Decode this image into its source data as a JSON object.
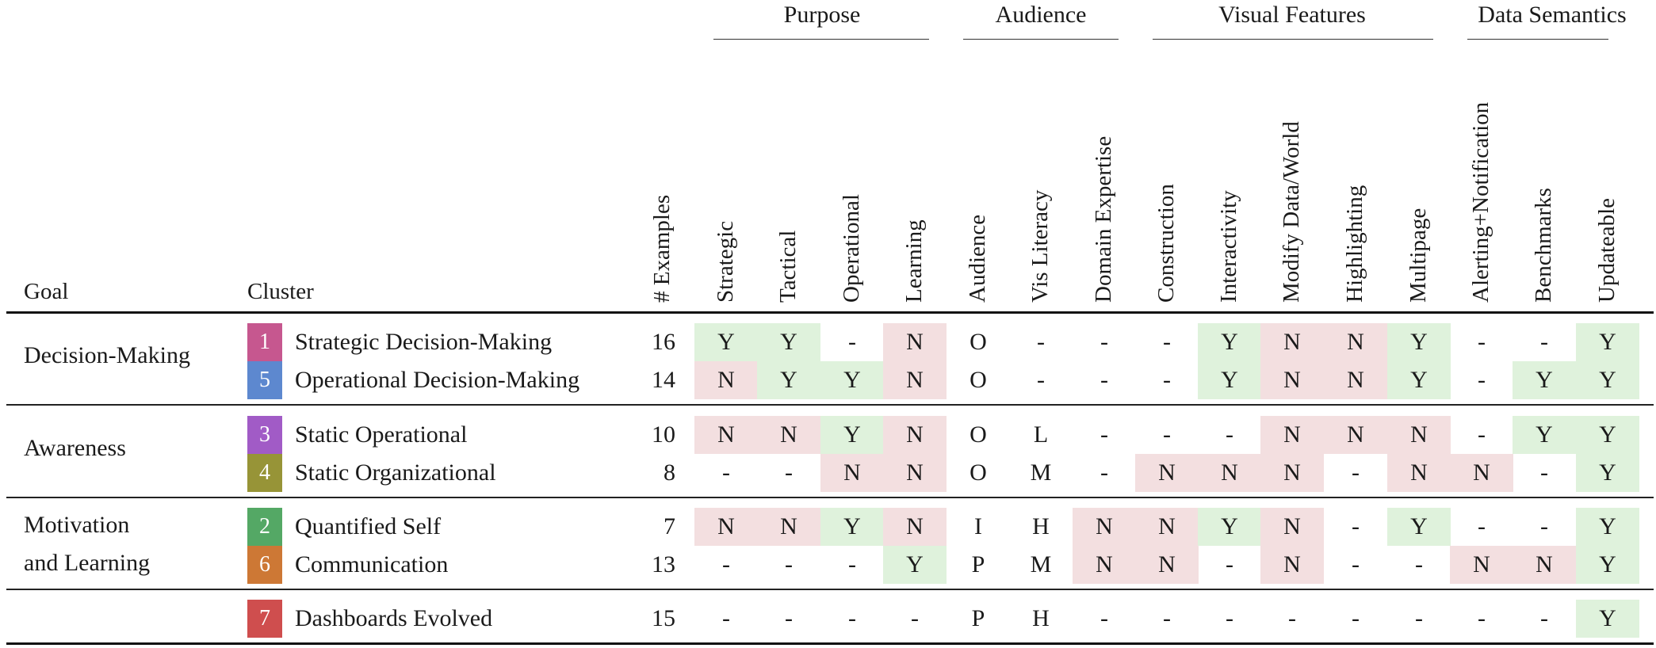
{
  "header": {
    "goal": "Goal",
    "cluster": "Cluster",
    "groups": [
      {
        "label": "Purpose"
      },
      {
        "label": "Audience"
      },
      {
        "label": "Visual Features"
      },
      {
        "label": "Data Semantics"
      }
    ],
    "columns": [
      "# Examples",
      "Strategic",
      "Tactical",
      "Operational",
      "Learning",
      "Audience",
      "Vis Literacy",
      "Domain Expertise",
      "Construction",
      "Interactivity",
      "Modify Data/World",
      "Highlighting",
      "Multipage",
      "Alerting+Notification",
      "Benchmarks",
      "Updateable"
    ]
  },
  "goals": [
    {
      "lines": [
        "Decision-Making"
      ]
    },
    {
      "lines": [
        "Awareness"
      ]
    },
    {
      "lines": [
        "Motivation",
        "and Learning"
      ]
    },
    {
      "lines": [
        ""
      ]
    }
  ],
  "colors": {
    "yes_bg": "#dff2dc",
    "no_bg": "#f3dfe0"
  },
  "rows": [
    {
      "num": "1",
      "color": "#c6578f",
      "name": "Strategic Decision-Making",
      "count": "16",
      "values": [
        "Y",
        "Y",
        "-",
        "N",
        "O",
        "-",
        "-",
        "-",
        "Y",
        "N",
        "N",
        "Y",
        "-",
        "-",
        "Y"
      ]
    },
    {
      "num": "5",
      "color": "#5d88cf",
      "name": "Operational Decision-Making",
      "count": "14",
      "values": [
        "N",
        "Y",
        "Y",
        "N",
        "O",
        "-",
        "-",
        "-",
        "Y",
        "N",
        "N",
        "Y",
        "-",
        "Y",
        "Y"
      ]
    },
    {
      "num": "3",
      "color": "#a15bc6",
      "name": "Static Operational",
      "count": "10",
      "values": [
        "N",
        "N",
        "Y",
        "N",
        "O",
        "L",
        "-",
        "-",
        "-",
        "N",
        "N",
        "N",
        "-",
        "Y",
        "Y"
      ]
    },
    {
      "num": "4",
      "color": "#979437",
      "name": "Static Organizational",
      "count": "8",
      "values": [
        "-",
        "-",
        "N",
        "N",
        "O",
        "M",
        "-",
        "N",
        "N",
        "N",
        "-",
        "N",
        "N",
        "-",
        "Y"
      ]
    },
    {
      "num": "2",
      "color": "#54a865",
      "name": "Quantified Self",
      "count": "7",
      "values": [
        "N",
        "N",
        "Y",
        "N",
        "I",
        "H",
        "N",
        "N",
        "Y",
        "N",
        "-",
        "Y",
        "-",
        "-",
        "Y"
      ]
    },
    {
      "num": "6",
      "color": "#cd7835",
      "name": "Communication",
      "count": "13",
      "values": [
        "-",
        "-",
        "-",
        "Y",
        "P",
        "M",
        "N",
        "N",
        "-",
        "N",
        "-",
        "-",
        "N",
        "N",
        "Y"
      ]
    },
    {
      "num": "7",
      "color": "#cf4e4e",
      "name": "Dashboards Evolved",
      "count": "15",
      "values": [
        "-",
        "-",
        "-",
        "-",
        "P",
        "H",
        "-",
        "-",
        "-",
        "-",
        "-",
        "-",
        "-",
        "-",
        "Y"
      ]
    }
  ]
}
